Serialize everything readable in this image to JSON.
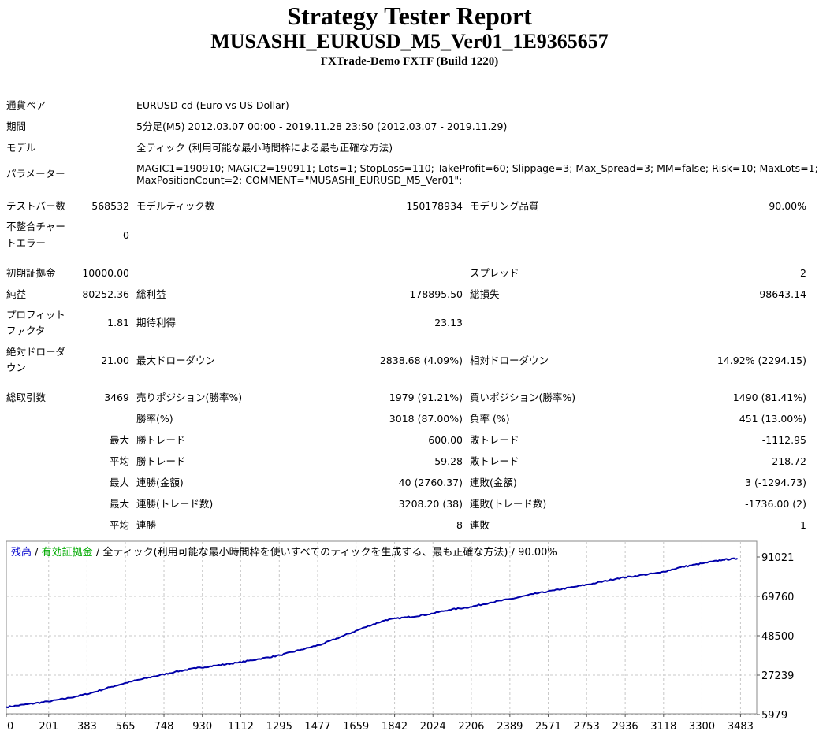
{
  "header": {
    "title": "Strategy Tester Report",
    "ea_name": "MUSASHI_EURUSD_M5_Ver01_1E9365657",
    "server_build": "FXTrade-Demo FXTF (Build 1220)"
  },
  "info": {
    "symbol_label": "通貨ペア",
    "symbol_value": "EURUSD-cd (Euro vs US Dollar)",
    "period_label": "期間",
    "period_value": "5分足(M5) 2012.03.07 00:00 - 2019.11.28 23:50 (2012.03.07 - 2019.11.29)",
    "model_label": "モデル",
    "model_value": "全ティック (利用可能な最小時間枠による最も正確な方法)",
    "params_label": "パラメーター",
    "params_line1": "MAGIC1=190910; MAGIC2=190911; Lots=1; StopLoss=110; TakeProfit=60; Slippage=3; Max_Spread=3; MM=false; Risk=10; MaxLots=1;",
    "params_line2": "MaxPositionCount=2; COMMENT=\"MUSASHI_EURUSD_M5_Ver01\";"
  },
  "stats": {
    "bars_label": "テストバー数",
    "bars_value": "568532",
    "ticks_label": "モデルティック数",
    "ticks_value": "150178934",
    "quality_label": "モデリング品質",
    "quality_value": "90.00%",
    "mismatch_label1": "不整合チャー",
    "mismatch_label2": "トエラー",
    "mismatch_value": "0",
    "deposit_label": "初期証拠金",
    "deposit_value": "10000.00",
    "spread_label": "スプレッド",
    "spread_value": "2",
    "net_label": "純益",
    "net_value": "80252.36",
    "gross_profit_label": "総利益",
    "gross_profit_value": "178895.50",
    "gross_loss_label": "総損失",
    "gross_loss_value": "-98643.14",
    "pf_label1": "プロフィット",
    "pf_label2": "ファクタ",
    "pf_value": "1.81",
    "expected_label": "期待利得",
    "expected_value": "23.13",
    "abs_dd_label1": "絶対ドローダ",
    "abs_dd_label2": "ウン",
    "abs_dd_value": "21.00",
    "max_dd_label": "最大ドローダウン",
    "max_dd_value": "2838.68 (4.09%)",
    "rel_dd_label": "相対ドローダウン",
    "rel_dd_value": "14.92% (2294.15)",
    "trades_label": "総取引数",
    "trades_value": "3469",
    "short_label": "売りポジション(勝率%)",
    "short_value": "1979 (91.21%)",
    "long_label": "買いポジション(勝率%)",
    "long_value": "1490 (81.41%)",
    "win_rate_label": "勝率(%)",
    "win_rate_value": "3018 (87.00%)",
    "loss_rate_label": "負率 (%)",
    "loss_rate_value": "451 (13.00%)",
    "max_label": "最大",
    "avg_label": "平均",
    "largest_win_label": "勝トレード",
    "largest_win_value": "600.00",
    "largest_loss_label": "敗トレード",
    "largest_loss_value": "-1112.95",
    "avg_win_label": "勝トレード",
    "avg_win_value": "59.28",
    "avg_loss_label": "敗トレード",
    "avg_loss_value": "-218.72",
    "max_consec_wins_money_label": "連勝(金額)",
    "max_consec_wins_money_value": "40 (2760.37)",
    "max_consec_losses_money_label": "連敗(金額)",
    "max_consec_losses_money_value": "3 (-1294.73)",
    "max_consec_wins_count_label": "連勝(トレード数)",
    "max_consec_wins_count_value": "3208.20 (38)",
    "max_consec_losses_count_label": "連敗(トレード数)",
    "max_consec_losses_count_value": "-1736.00 (2)",
    "avg_consec_wins_label": "連勝",
    "avg_consec_wins_value": "8",
    "avg_consec_losses_label": "連敗",
    "avg_consec_losses_value": "1"
  },
  "chart_data": {
    "type": "line",
    "legend": {
      "balance": "残高",
      "sep1": " / ",
      "equity": "有効証拠金",
      "sep2": " / ",
      "model": "全ティック(利用可能な最小時間枠を使いすべてのティックを生成する、最も正確な方法)",
      "sep3": " / ",
      "quality": "90.00%"
    },
    "x_ticks": [
      "0",
      "201",
      "383",
      "565",
      "748",
      "930",
      "1112",
      "1295",
      "1477",
      "1659",
      "1842",
      "2024",
      "2206",
      "2389",
      "2571",
      "2753",
      "2936",
      "3118",
      "3300",
      "3483"
    ],
    "y_ticks": [
      "91021",
      "69760",
      "48500",
      "27239",
      "5979"
    ],
    "xlim": [
      0,
      3560
    ],
    "ylim": [
      5979,
      91021
    ],
    "series": [
      {
        "color": "#0000aa",
        "x": [
          0,
          100,
          200,
          300,
          400,
          500,
          600,
          700,
          800,
          900,
          1000,
          1100,
          1200,
          1300,
          1400,
          1500,
          1600,
          1700,
          1800,
          1900,
          2000,
          2100,
          2200,
          2300,
          2400,
          2500,
          2600,
          2700,
          2800,
          2900,
          3000,
          3100,
          3200,
          3300,
          3400,
          3469
        ],
        "y": [
          10000,
          11500,
          13000,
          15000,
          17500,
          21000,
          24000,
          26500,
          29000,
          31000,
          32500,
          34000,
          36000,
          38000,
          41000,
          44000,
          48500,
          53000,
          57000,
          58500,
          60000,
          62500,
          64000,
          66500,
          68500,
          71000,
          73000,
          75000,
          77000,
          79500,
          81000,
          82500,
          85500,
          87500,
          89500,
          90200
        ]
      }
    ],
    "grid": true
  }
}
